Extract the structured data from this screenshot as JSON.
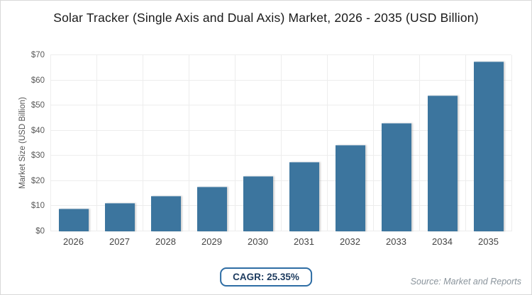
{
  "title": "Solar Tracker (Single Axis and Dual Axis) Market, 2026 - 2035 (USD Billion)",
  "chart_data": {
    "type": "bar",
    "categories": [
      "2026",
      "2027",
      "2028",
      "2029",
      "2030",
      "2031",
      "2032",
      "2033",
      "2034",
      "2035"
    ],
    "values": [
      8.8,
      11.0,
      13.8,
      17.3,
      21.7,
      27.2,
      34.1,
      42.8,
      53.6,
      67.2
    ],
    "title": "Solar Tracker (Single Axis and Dual Axis) Market, 2026 - 2035 (USD Billion)",
    "xlabel": "",
    "ylabel": "Market Size (USD Billion)",
    "ylim": [
      0,
      70
    ],
    "ytick_step": 10,
    "ytick_labels": [
      "$0",
      "$10",
      "$20",
      "$30",
      "$40",
      "$50",
      "$60",
      "$70"
    ],
    "grid": true,
    "legend": false,
    "bar_color": "#3c759e"
  },
  "badge": {
    "label": "CAGR: 25.35%"
  },
  "footer": {
    "source": "Source: Market and Reports"
  },
  "colors": {
    "bar": "#3c759e",
    "badge_border": "#2e6da4",
    "badge_text": "#1c3a5e",
    "gridline": "#ededed",
    "source_text": "#8a949c",
    "frame_border": "#d8d8d8"
  }
}
